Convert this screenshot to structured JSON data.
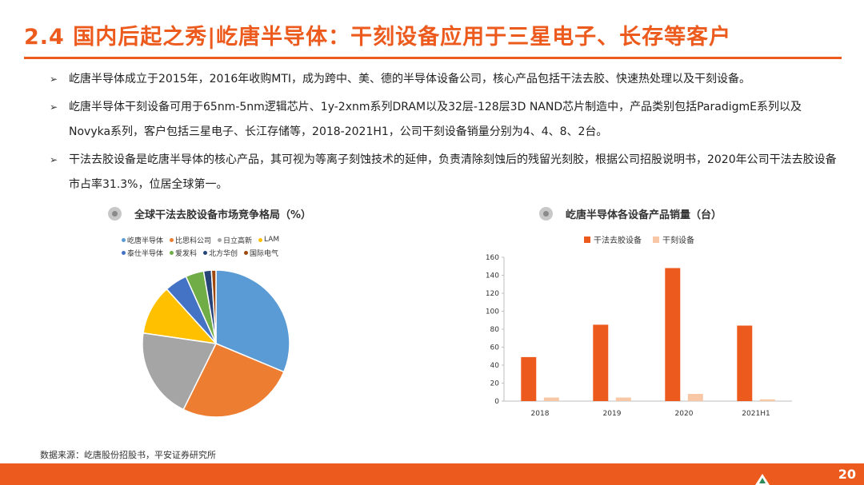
{
  "slide": {
    "title": "2.4 国内后起之秀|屹唐半导体：干刻设备应用于三星电子、长存等客户",
    "page_number": "20",
    "source": "数据来源：屹唐股份招股书，平安证券研究所"
  },
  "bullets": [
    {
      "text": "屹唐半导体成立于2015年，2016年收购MTI，成为跨中、美、德的半导体设备公司，核心产品包括干法去胶、快速热处理以及干刻设备。"
    },
    {
      "text": "屹唐半导体干刻设备可用于65nm-5nm逻辑芯片、1y-2xnm系列DRAM以及32层-128层3D NAND芯片制造中，产品类别包括ParadigmE系列以及Novyka系列，客户包括三星电子、长江存储等，2018-2021H1，公司干刻设备销量分别为4、4、8、2台。"
    },
    {
      "text": "干法去胶设备是屹唐半导体的核心产品，其可视为等离子刻蚀技术的延伸，负责清除刻蚀后的残留光刻胶，根据公司招股说明书，2020年公司干法去胶设备市占率31.3%，位居全球第一。"
    }
  ],
  "icons": {
    "bullet": "arrow-bullet-icon",
    "chart_header": "radio-dot-icon",
    "footer_logo": "triangle-logo-icon"
  },
  "colors": {
    "accent": "#ec5b1d"
  },
  "chart_data": [
    {
      "type": "pie",
      "title": "全球干法去胶设备市场竞争格局（%）",
      "legend_position": "top",
      "slices": [
        {
          "label": "屹唐半导体",
          "value": 31.3,
          "color": "#5b9bd5"
        },
        {
          "label": "比思科公司",
          "value": 26.0,
          "color": "#ed7d31"
        },
        {
          "label": "日立高新",
          "value": 20.0,
          "color": "#a5a5a5"
        },
        {
          "label": "LAM",
          "value": 11.0,
          "color": "#ffc000"
        },
        {
          "label": "泰仕半导体",
          "value": 5.0,
          "color": "#4472c4"
        },
        {
          "label": "爱发科",
          "value": 4.0,
          "color": "#70ad47"
        },
        {
          "label": "北方华创",
          "value": 1.7,
          "color": "#264478"
        },
        {
          "label": "国际电气",
          "value": 1.0,
          "color": "#9e480e"
        }
      ]
    },
    {
      "type": "bar",
      "title": "屹唐半导体各设备产品销量（台）",
      "legend_position": "top",
      "categories": [
        "2018",
        "2019",
        "2020",
        "2021H1"
      ],
      "series": [
        {
          "name": "干法去胶设备",
          "color": "#ec5b1d",
          "values": [
            49,
            85,
            148,
            84
          ]
        },
        {
          "name": "干刻设备",
          "color": "#f8c7a6",
          "values": [
            4,
            4,
            8,
            2
          ]
        }
      ],
      "ylim": [
        0,
        160
      ],
      "yticks": [
        0,
        20,
        40,
        60,
        80,
        100,
        120,
        140,
        160
      ],
      "grid": false
    }
  ]
}
